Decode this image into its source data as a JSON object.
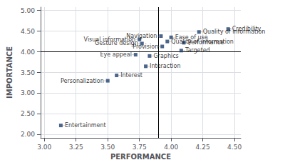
{
  "chart_data": {
    "type": "scatter",
    "xlabel": "PERFORMANCE",
    "ylabel": "IMPORTANCE",
    "labels": [
      "Credibility",
      "Quality of information",
      "Navigation",
      "Ease of use",
      "Quality of information",
      "Visual information",
      "Gesture design",
      "Provision",
      "Performance",
      "Targeted",
      "Eye appeal",
      "Graphics",
      "Interaction",
      "Interest",
      "Personalization",
      "Entertainment"
    ],
    "x": [
      4.45,
      4.22,
      3.92,
      4.0,
      3.97,
      3.75,
      3.77,
      3.93,
      4.1,
      4.08,
      3.72,
      3.83,
      3.8,
      3.57,
      3.5,
      3.13
    ],
    "values": [
      4.55,
      4.48,
      4.38,
      4.35,
      4.25,
      4.3,
      4.2,
      4.13,
      4.22,
      4.03,
      3.93,
      3.9,
      3.65,
      3.43,
      3.3,
      2.22
    ],
    "color": "#1f3f6e",
    "marker": "square",
    "xlim": [
      2.97,
      4.55
    ],
    "ylim": [
      1.92,
      5.08
    ],
    "xticks": [
      {
        "value": 3.0,
        "label": "3.00"
      },
      {
        "value": 3.25,
        "label": "3.25"
      },
      {
        "value": 3.5,
        "label": "3.50"
      },
      {
        "value": 3.75,
        "label": "3.75"
      },
      {
        "value": 4.0,
        "label": "4.00"
      },
      {
        "value": 4.25,
        "label": "4.25"
      },
      {
        "value": 4.5,
        "label": "4.50"
      }
    ],
    "yticks": [
      {
        "value": 2.0,
        "label": "2.00"
      },
      {
        "value": 2.5,
        "label": "2.50"
      },
      {
        "value": 3.0,
        "label": "3.00"
      },
      {
        "value": 3.5,
        "label": "3.50"
      },
      {
        "value": 4.0,
        "label": "4.00"
      },
      {
        "value": 4.5,
        "label": "4.50"
      },
      {
        "value": 5.0,
        "label": "5.00"
      }
    ],
    "grid": true,
    "vline_x": 3.9,
    "hline_y": 4.0
  }
}
